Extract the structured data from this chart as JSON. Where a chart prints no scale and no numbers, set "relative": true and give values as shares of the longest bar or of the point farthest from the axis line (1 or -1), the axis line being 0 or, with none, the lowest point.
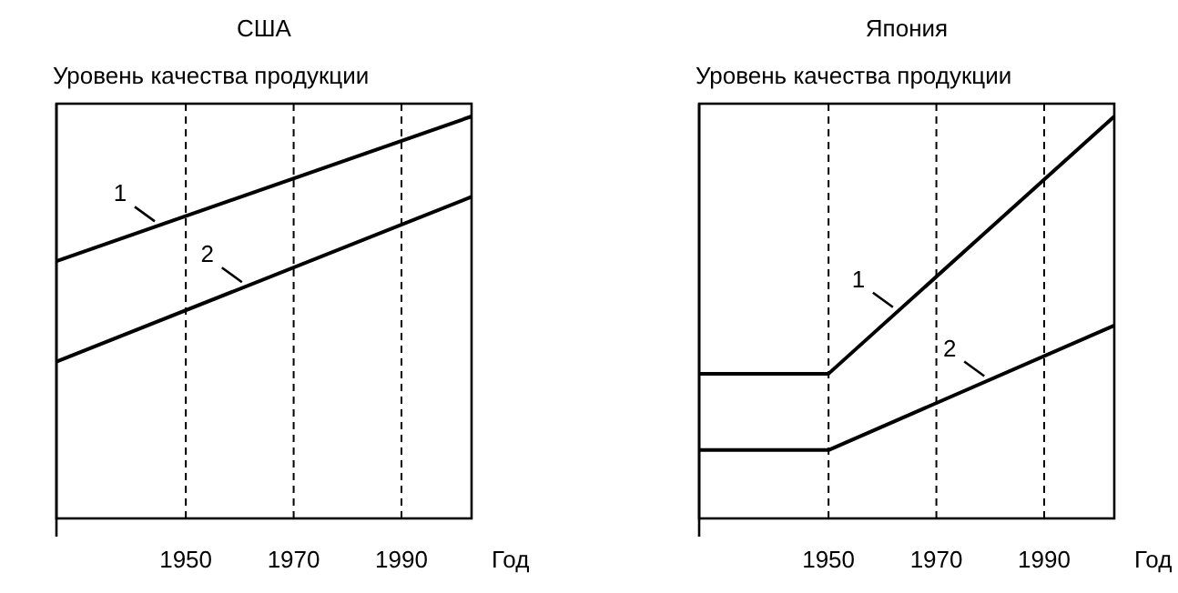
{
  "chart_data": [
    {
      "type": "line",
      "title": "США",
      "ylabel": "Уровень качества продукции",
      "xlabel": "Год",
      "relative": true,
      "xlim": [
        1926,
        2003
      ],
      "xticks": [
        1950,
        1970,
        1990
      ],
      "grid": "x",
      "marker": "none",
      "line_style": "solid",
      "series": [
        {
          "name": "1",
          "color": "#000000",
          "x": [
            1926,
            2003
          ],
          "values": [
            0.64,
            1
          ]
        },
        {
          "name": "2",
          "color": "#000000",
          "x": [
            1926,
            2003
          ],
          "values": [
            0.39,
            0.8
          ]
        }
      ]
    },
    {
      "type": "line",
      "title": "Япония",
      "ylabel": "Уровень качества продукции",
      "xlabel": "Год",
      "relative": true,
      "xlim": [
        1926,
        2003
      ],
      "xticks": [
        1950,
        1970,
        1990
      ],
      "grid": "x",
      "marker": "none",
      "line_style": "solid",
      "series": [
        {
          "name": "1",
          "color": "#000000",
          "x": [
            1926,
            1950,
            2003
          ],
          "values": [
            0.36,
            0.36,
            1
          ]
        },
        {
          "name": "2",
          "color": "#000000",
          "x": [
            1926,
            1950,
            2003
          ],
          "values": [
            0.17,
            0.17,
            0.48
          ]
        }
      ]
    }
  ]
}
